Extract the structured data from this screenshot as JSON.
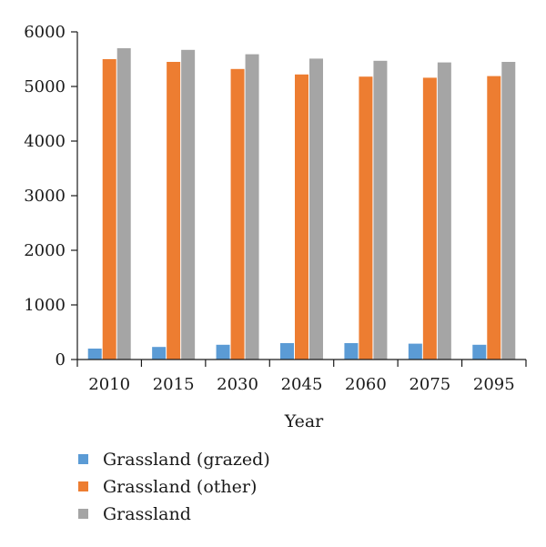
{
  "chart_data": {
    "type": "bar",
    "title": "",
    "xlabel": "Year",
    "ylabel": "",
    "categories": [
      "2010",
      "2015",
      "2030",
      "2045",
      "2060",
      "2075",
      "2095"
    ],
    "ylim": [
      0,
      6000
    ],
    "yticks": [
      0,
      1000,
      2000,
      3000,
      4000,
      5000,
      6000
    ],
    "grid": false,
    "legend_position": "bottom-left",
    "series": [
      {
        "name": "Grassland (grazed)",
        "color": "#5b9bd5",
        "values": [
          200,
          230,
          270,
          300,
          300,
          290,
          270
        ]
      },
      {
        "name": "Grassland (other)",
        "color": "#ed7d31",
        "values": [
          5500,
          5450,
          5320,
          5220,
          5180,
          5160,
          5190
        ]
      },
      {
        "name": "Grassland",
        "color": "#a5a5a5",
        "values": [
          5700,
          5670,
          5590,
          5510,
          5470,
          5440,
          5450
        ]
      }
    ]
  }
}
